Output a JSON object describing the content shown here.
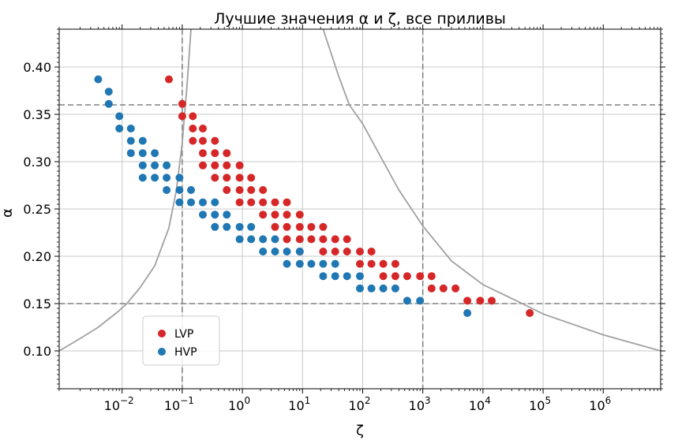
{
  "chart_data": {
    "type": "scatter",
    "title": "Лучшие значения α и ζ, все приливы",
    "xlabel": "ζ",
    "ylabel": "α",
    "xscale": "log",
    "xlim": [
      0.0009,
      9000000
    ],
    "ylim": [
      0.06,
      0.44
    ],
    "grid": true,
    "legend": "lower-left",
    "x_ticks": [
      {
        "exp": -2,
        "base": "10",
        "sup": "−2"
      },
      {
        "exp": -1,
        "base": "10",
        "sup": "−1"
      },
      {
        "exp": 0,
        "base": "10",
        "sup": "0"
      },
      {
        "exp": 1,
        "base": "10",
        "sup": "1"
      },
      {
        "exp": 2,
        "base": "10",
        "sup": "2"
      },
      {
        "exp": 3,
        "base": "10",
        "sup": "3"
      },
      {
        "exp": 4,
        "base": "10",
        "sup": "4"
      },
      {
        "exp": 5,
        "base": "10",
        "sup": "5"
      },
      {
        "exp": 6,
        "base": "10",
        "sup": "6"
      }
    ],
    "y_ticks": [
      "0.10",
      "0.15",
      "0.20",
      "0.25",
      "0.30",
      "0.35",
      "0.40"
    ],
    "reference_lines": {
      "horizontal": [
        0.15,
        0.36
      ],
      "vertical": [
        0.1,
        1000
      ],
      "color": "#808080",
      "style": "dashed"
    },
    "colors": {
      "LVP": "#d62728",
      "HVP": "#1f77b4",
      "curve": "#a0a0a0",
      "grid": "#c8c8c8"
    },
    "series": [
      {
        "name": "LVP",
        "points": [
          [
            0.06,
            0.387
          ],
          [
            0.1,
            0.361
          ],
          [
            0.1,
            0.348
          ],
          [
            0.15,
            0.348
          ],
          [
            0.15,
            0.335
          ],
          [
            0.15,
            0.322
          ],
          [
            0.22,
            0.335
          ],
          [
            0.22,
            0.322
          ],
          [
            0.22,
            0.309
          ],
          [
            0.22,
            0.296
          ],
          [
            0.35,
            0.322
          ],
          [
            0.35,
            0.309
          ],
          [
            0.35,
            0.296
          ],
          [
            0.35,
            0.283
          ],
          [
            0.55,
            0.309
          ],
          [
            0.55,
            0.296
          ],
          [
            0.55,
            0.283
          ],
          [
            0.55,
            0.27
          ],
          [
            0.9,
            0.296
          ],
          [
            0.9,
            0.283
          ],
          [
            0.9,
            0.27
          ],
          [
            0.9,
            0.257
          ],
          [
            1.4,
            0.283
          ],
          [
            1.4,
            0.27
          ],
          [
            1.4,
            0.257
          ],
          [
            2.2,
            0.27
          ],
          [
            2.2,
            0.257
          ],
          [
            2.2,
            0.244
          ],
          [
            3.5,
            0.257
          ],
          [
            3.5,
            0.244
          ],
          [
            3.5,
            0.231
          ],
          [
            5.5,
            0.257
          ],
          [
            5.5,
            0.244
          ],
          [
            5.5,
            0.231
          ],
          [
            5.5,
            0.218
          ],
          [
            9,
            0.244
          ],
          [
            9,
            0.231
          ],
          [
            9,
            0.218
          ],
          [
            9,
            0.205
          ],
          [
            14,
            0.231
          ],
          [
            14,
            0.218
          ],
          [
            22,
            0.231
          ],
          [
            22,
            0.218
          ],
          [
            22,
            0.205
          ],
          [
            35,
            0.218
          ],
          [
            35,
            0.205
          ],
          [
            55,
            0.218
          ],
          [
            55,
            0.205
          ],
          [
            90,
            0.205
          ],
          [
            90,
            0.192
          ],
          [
            140,
            0.205
          ],
          [
            140,
            0.192
          ],
          [
            220,
            0.192
          ],
          [
            220,
            0.179
          ],
          [
            350,
            0.192
          ],
          [
            350,
            0.179
          ],
          [
            550,
            0.179
          ],
          [
            900,
            0.179
          ],
          [
            1400,
            0.179
          ],
          [
            1400,
            0.166
          ],
          [
            2200,
            0.166
          ],
          [
            3500,
            0.166
          ],
          [
            5500,
            0.153
          ],
          [
            9000,
            0.153
          ],
          [
            14000,
            0.153
          ],
          [
            60000,
            0.14
          ]
        ]
      },
      {
        "name": "HVP",
        "points": [
          [
            0.004,
            0.387
          ],
          [
            0.006,
            0.374
          ],
          [
            0.006,
            0.361
          ],
          [
            0.009,
            0.348
          ],
          [
            0.009,
            0.335
          ],
          [
            0.014,
            0.335
          ],
          [
            0.014,
            0.322
          ],
          [
            0.014,
            0.309
          ],
          [
            0.022,
            0.322
          ],
          [
            0.022,
            0.309
          ],
          [
            0.022,
            0.296
          ],
          [
            0.022,
            0.283
          ],
          [
            0.035,
            0.309
          ],
          [
            0.035,
            0.296
          ],
          [
            0.035,
            0.283
          ],
          [
            0.055,
            0.296
          ],
          [
            0.055,
            0.283
          ],
          [
            0.055,
            0.27
          ],
          [
            0.09,
            0.283
          ],
          [
            0.09,
            0.27
          ],
          [
            0.09,
            0.257
          ],
          [
            0.14,
            0.27
          ],
          [
            0.14,
            0.257
          ],
          [
            0.22,
            0.257
          ],
          [
            0.22,
            0.244
          ],
          [
            0.35,
            0.257
          ],
          [
            0.35,
            0.244
          ],
          [
            0.35,
            0.231
          ],
          [
            0.55,
            0.244
          ],
          [
            0.55,
            0.231
          ],
          [
            0.9,
            0.231
          ],
          [
            0.9,
            0.218
          ],
          [
            1.4,
            0.231
          ],
          [
            1.4,
            0.218
          ],
          [
            2.2,
            0.218
          ],
          [
            2.2,
            0.205
          ],
          [
            3.5,
            0.218
          ],
          [
            3.5,
            0.205
          ],
          [
            5.5,
            0.205
          ],
          [
            5.5,
            0.192
          ],
          [
            9,
            0.205
          ],
          [
            9,
            0.192
          ],
          [
            14,
            0.192
          ],
          [
            22,
            0.192
          ],
          [
            22,
            0.179
          ],
          [
            35,
            0.192
          ],
          [
            35,
            0.179
          ],
          [
            55,
            0.179
          ],
          [
            90,
            0.179
          ],
          [
            90,
            0.166
          ],
          [
            140,
            0.166
          ],
          [
            220,
            0.166
          ],
          [
            350,
            0.166
          ],
          [
            550,
            0.153
          ],
          [
            900,
            0.153
          ],
          [
            5500,
            0.14
          ]
        ]
      }
    ],
    "curves": [
      {
        "points": [
          [
            0.0009,
            0.1
          ],
          [
            0.002,
            0.113
          ],
          [
            0.004,
            0.125
          ],
          [
            0.008,
            0.14
          ],
          [
            0.012,
            0.15
          ],
          [
            0.02,
            0.167
          ],
          [
            0.035,
            0.19
          ],
          [
            0.06,
            0.23
          ],
          [
            0.08,
            0.27
          ],
          [
            0.1,
            0.32
          ],
          [
            0.12,
            0.38
          ],
          [
            0.14,
            0.44
          ]
        ]
      },
      {
        "points": [
          [
            22,
            0.44
          ],
          [
            40,
            0.39
          ],
          [
            60,
            0.36
          ],
          [
            100,
            0.34
          ],
          [
            200,
            0.305
          ],
          [
            400,
            0.27
          ],
          [
            1000,
            0.232
          ],
          [
            3000,
            0.195
          ],
          [
            10000,
            0.17
          ],
          [
            45000,
            0.15
          ],
          [
            100000,
            0.139
          ],
          [
            1000000,
            0.117
          ],
          [
            9000000,
            0.1
          ]
        ]
      }
    ]
  }
}
